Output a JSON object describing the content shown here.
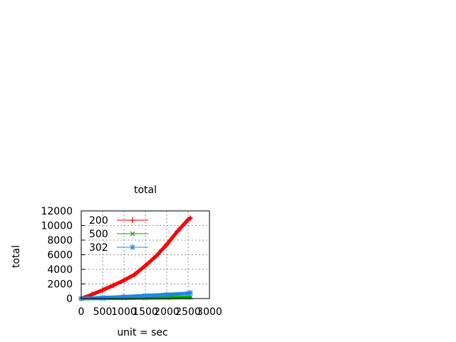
{
  "chart_data": {
    "type": "line",
    "title": "total",
    "xlabel": "unit = sec",
    "ylabel": "total",
    "xlim": [
      0,
      3000
    ],
    "ylim": [
      0,
      12000
    ],
    "x_ticks": [
      0,
      500,
      1000,
      1500,
      2000,
      2500,
      3000
    ],
    "y_ticks": [
      0,
      2000,
      4000,
      6000,
      8000,
      10000,
      12000
    ],
    "x_tick_labels": [
      "0",
      "500",
      "1000",
      "1500",
      "2000",
      "2500",
      "3000"
    ],
    "y_tick_labels": [
      "0",
      "2000",
      "4000",
      "6000",
      "8000",
      "10000",
      "12000"
    ],
    "grid": true,
    "legend_position": "top-left",
    "series": [
      {
        "name": "200",
        "color": "#ff0000",
        "marker": "plus",
        "x": [
          0,
          250,
          500,
          750,
          1000,
          1250,
          1500,
          1750,
          2000,
          2250,
          2500,
          2550
        ],
        "y": [
          0,
          550,
          1150,
          1800,
          2500,
          3300,
          4500,
          5800,
          7400,
          9200,
          10800,
          11000
        ]
      },
      {
        "name": "500",
        "color": "#00aa00",
        "marker": "cross",
        "x": [
          0,
          500,
          1000,
          1500,
          2000,
          2500,
          2550
        ],
        "y": [
          0,
          25,
          50,
          80,
          110,
          150,
          170
        ]
      },
      {
        "name": "302",
        "color": "#1e88e5",
        "marker": "star",
        "x": [
          0,
          500,
          1000,
          1500,
          2000,
          2500,
          2550
        ],
        "y": [
          0,
          120,
          250,
          400,
          550,
          700,
          780
        ]
      }
    ]
  }
}
